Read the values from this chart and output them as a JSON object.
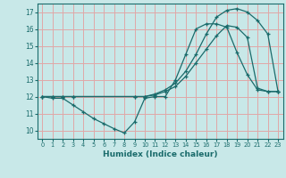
{
  "xlabel": "Humidex (Indice chaleur)",
  "xlim": [
    -0.5,
    23.5
  ],
  "ylim": [
    9.5,
    17.5
  ],
  "yticks": [
    10,
    11,
    12,
    13,
    14,
    15,
    16,
    17
  ],
  "xticks": [
    0,
    1,
    2,
    3,
    4,
    5,
    6,
    7,
    8,
    9,
    10,
    11,
    12,
    13,
    14,
    15,
    16,
    17,
    18,
    19,
    20,
    21,
    22,
    23
  ],
  "background_color": "#c8e8e8",
  "grid_color": "#e0a8a8",
  "line_color": "#1a6b6b",
  "line1_x": [
    0,
    1,
    2,
    3,
    4,
    5,
    6,
    7,
    8,
    9,
    10,
    11,
    12,
    13,
    14,
    15,
    16,
    17,
    18,
    19,
    20,
    21,
    22,
    23
  ],
  "line1_y": [
    12.0,
    11.9,
    11.9,
    11.5,
    11.1,
    10.7,
    10.4,
    10.1,
    9.85,
    10.5,
    11.9,
    12.0,
    12.0,
    13.0,
    14.5,
    16.0,
    16.3,
    16.3,
    16.1,
    14.6,
    13.3,
    12.4,
    12.3,
    12.3
  ],
  "line2_x": [
    0,
    1,
    2,
    3,
    9,
    10,
    11,
    12,
    13,
    14,
    15,
    16,
    17,
    18,
    19,
    20,
    21,
    22,
    23
  ],
  "line2_y": [
    12.0,
    12.0,
    12.0,
    12.0,
    12.0,
    12.0,
    12.1,
    12.3,
    12.6,
    13.2,
    14.0,
    14.8,
    15.6,
    16.2,
    16.1,
    15.5,
    12.5,
    12.3,
    12.3
  ],
  "line3_x": [
    0,
    1,
    2,
    3,
    9,
    10,
    11,
    12,
    13,
    14,
    15,
    16,
    17,
    18,
    19,
    20,
    21,
    22,
    23
  ],
  "line3_y": [
    12.0,
    12.0,
    12.0,
    12.0,
    12.0,
    12.0,
    12.15,
    12.4,
    12.8,
    13.5,
    14.5,
    15.7,
    16.7,
    17.1,
    17.2,
    17.0,
    16.5,
    15.7,
    12.3
  ]
}
